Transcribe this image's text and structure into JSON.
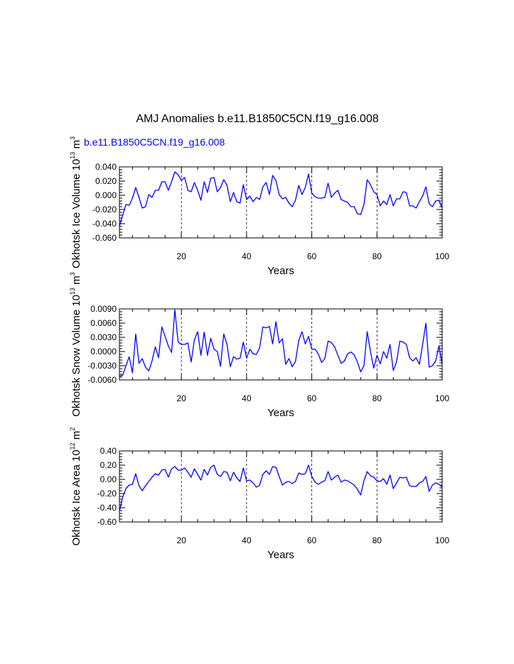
{
  "figure": {
    "title": "AMJ Anomalies b.e11.B1850C5CN.f19_g16.008",
    "case_label": "b.e11.B1850C5CN.f19_g16.008",
    "line_color": "#0000ff",
    "grid_color": "#000000"
  },
  "chart_data": [
    {
      "type": "line",
      "series_name": "b.e11.B1850C5CN.f19_g16.008",
      "ylabel": {
        "main": "Okhotsk Ice Volume 10",
        "exp": "13",
        "unit": " m",
        "unit_exp": "3"
      },
      "xlabel": "Years",
      "xlim": [
        1,
        100
      ],
      "ylim": [
        -0.06,
        0.04
      ],
      "x_ticks": [
        20,
        40,
        60,
        80,
        100
      ],
      "x_tick_labels": [
        "20",
        "40",
        "60",
        "80",
        "100"
      ],
      "y_ticks": [
        -0.06,
        -0.04,
        -0.02,
        0.0,
        0.02,
        0.04
      ],
      "y_tick_labels": [
        "-0.060",
        "-0.040",
        "-0.020",
        "0.000",
        "0.020",
        "0.040"
      ],
      "grid": "vertical dashed at 20, 40, 60, 80",
      "values": [
        -0.044,
        -0.028,
        -0.013,
        -0.014,
        -0.004,
        0.011,
        -0.003,
        -0.018,
        -0.016,
        0.001,
        -0.003,
        0.007,
        0.007,
        0.019,
        0.019,
        0.007,
        0.019,
        0.033,
        0.029,
        0.021,
        0.025,
        0.007,
        0.005,
        0.018,
        0.007,
        -0.007,
        0.019,
        0.004,
        0.024,
        0.025,
        0.005,
        0.011,
        0.022,
        0.014,
        -0.009,
        0.004,
        -0.009,
        -0.011,
        0.015,
        -0.006,
        -0.001,
        -0.009,
        -0.003,
        -0.006,
        0.012,
        0.018,
        0.001,
        0.028,
        0.021,
        0.001,
        -0.005,
        -0.003,
        -0.011,
        -0.016,
        -0.007,
        0.014,
        0.001,
        0.011,
        0.03,
        0.003,
        -0.002,
        -0.004,
        -0.004,
        -0.003,
        0.017,
        -0.003,
        0.003,
        0.007,
        -0.006,
        -0.008,
        -0.01,
        -0.016,
        -0.016,
        -0.026,
        -0.027,
        -0.013,
        0.022,
        0.015,
        0.005,
        0.001,
        -0.015,
        -0.008,
        -0.013,
        0.001,
        -0.015,
        -0.005,
        -0.005,
        0.005,
        0.004,
        -0.015,
        -0.015,
        -0.018,
        -0.009,
        -0.001,
        0.012,
        -0.012,
        -0.016,
        -0.008,
        -0.007,
        -0.018
      ]
    },
    {
      "type": "line",
      "series_name": "b.e11.B1850C5CN.f19_g16.008",
      "ylabel": {
        "main": "Okhotsk Snow Volume 10",
        "exp": "13",
        "unit": " m",
        "unit_exp": "3"
      },
      "xlabel": "Years",
      "xlim": [
        1,
        100
      ],
      "ylim": [
        -0.006,
        0.009
      ],
      "x_ticks": [
        20,
        40,
        60,
        80,
        100
      ],
      "x_tick_labels": [
        "20",
        "40",
        "60",
        "80",
        "100"
      ],
      "y_ticks": [
        -0.006,
        -0.003,
        0.0,
        0.003,
        0.006,
        0.009
      ],
      "y_tick_labels": [
        "-0.0060",
        "-0.0030",
        "0.0000",
        "0.0030",
        "0.0060",
        "0.0090"
      ],
      "grid": "vertical dashed at 20, 40, 60, 80",
      "values": [
        -0.0052,
        -0.005,
        -0.003,
        -0.0011,
        -0.0045,
        0.0037,
        -0.0025,
        -0.0015,
        -0.0033,
        -0.0041,
        -0.002,
        0.001,
        -0.0013,
        0.0052,
        0.0032,
        0.0012,
        -0.0002,
        0.0088,
        0.002,
        0.0015,
        0.0015,
        0.0018,
        -0.0022,
        0.0025,
        0.0042,
        -0.0008,
        0.0041,
        -0.0008,
        0.0028,
        0.0005,
        0.0,
        -0.0031,
        0.0037,
        0.0015,
        -0.0032,
        -0.0011,
        -0.0016,
        -0.0014,
        0.002,
        -0.0014,
        0.0005,
        -0.0005,
        -0.0006,
        0.0008,
        0.0052,
        0.005,
        0.0053,
        0.0016,
        0.0063,
        0.0018,
        0.0027,
        -0.0027,
        -0.0015,
        -0.0032,
        -0.0021,
        0.0023,
        0.0042,
        0.0016,
        0.0032,
        0.0005,
        0.0005,
        -0.0005,
        -0.0023,
        -0.0015,
        0.0022,
        0.0019,
        0.001,
        -0.0008,
        -0.0025,
        -0.002,
        -0.0005,
        -0.0001,
        -0.0007,
        -0.0022,
        -0.0043,
        -0.003,
        0.0042,
        0.0,
        -0.0035,
        -0.0008,
        -0.0026,
        0.0,
        -0.0014,
        0.0015,
        -0.004,
        -0.0022,
        0.0022,
        0.002,
        0.0015,
        -0.0013,
        -0.002,
        -0.0013,
        -0.0027,
        0.0015,
        0.006,
        -0.0033,
        -0.003,
        -0.002,
        0.0012,
        -0.0028
      ]
    },
    {
      "type": "line",
      "series_name": "b.e11.B1850C5CN.f19_g16.008",
      "ylabel": {
        "main": "Okhotsk Ice Area 10",
        "exp": "12",
        "unit": " m",
        "unit_exp": "2"
      },
      "xlabel": "Years",
      "xlim": [
        1,
        100
      ],
      "ylim": [
        -0.6,
        0.4
      ],
      "x_ticks": [
        20,
        40,
        60,
        80,
        100
      ],
      "x_tick_labels": [
        "20",
        "40",
        "60",
        "80",
        "100"
      ],
      "y_ticks": [
        -0.6,
        -0.4,
        -0.2,
        0.0,
        0.2,
        0.4
      ],
      "y_tick_labels": [
        "-0.60",
        "-0.40",
        "-0.20",
        "0.00",
        "0.20",
        "0.40"
      ],
      "grid": "vertical dashed at 20, 40, 60, 80",
      "values": [
        -0.45,
        -0.25,
        -0.13,
        -0.08,
        -0.07,
        0.08,
        -0.09,
        -0.16,
        -0.09,
        -0.03,
        0.03,
        0.08,
        0.06,
        0.13,
        0.14,
        0.03,
        0.15,
        0.18,
        0.13,
        0.13,
        0.16,
        0.1,
        0.03,
        0.15,
        0.07,
        -0.01,
        0.14,
        0.06,
        0.17,
        0.2,
        0.07,
        0.04,
        0.11,
        0.1,
        -0.02,
        0.1,
        0.02,
        -0.03,
        0.16,
        -0.02,
        -0.01,
        -0.05,
        -0.11,
        -0.08,
        0.07,
        0.12,
        0.07,
        0.18,
        0.17,
        0.04,
        -0.08,
        -0.04,
        -0.03,
        -0.06,
        -0.03,
        0.09,
        0.07,
        0.08,
        0.2,
        0.04,
        -0.04,
        -0.07,
        -0.04,
        -0.02,
        0.11,
        -0.01,
        0.03,
        0.06,
        -0.04,
        -0.01,
        -0.02,
        -0.05,
        -0.08,
        -0.14,
        -0.22,
        -0.02,
        0.11,
        0.05,
        0.03,
        -0.02,
        -0.03,
        0.01,
        -0.07,
        0.06,
        -0.13,
        -0.05,
        0.03,
        0.02,
        0.03,
        -0.09,
        -0.1,
        -0.1,
        -0.05,
        -0.03,
        0.04,
        -0.17,
        -0.08,
        -0.05,
        -0.07,
        -0.11
      ]
    }
  ]
}
